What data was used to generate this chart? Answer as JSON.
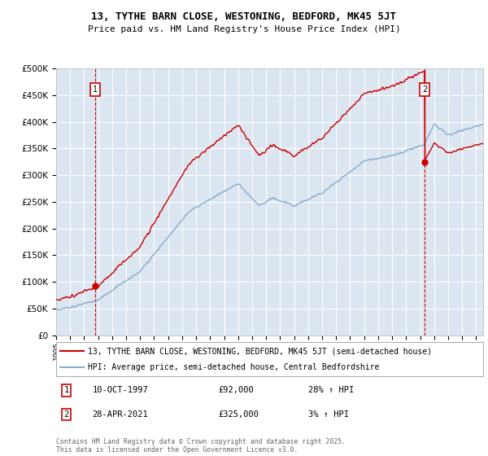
{
  "title1": "13, TYTHE BARN CLOSE, WESTONING, BEDFORD, MK45 5JT",
  "title2": "Price paid vs. HM Land Registry's House Price Index (HPI)",
  "legend_line1": "13, TYTHE BARN CLOSE, WESTONING, BEDFORD, MK45 5JT (semi-detached house)",
  "legend_line2": "HPI: Average price, semi-detached house, Central Bedfordshire",
  "annotation1_date": "10-OCT-1997",
  "annotation1_price": "£92,000",
  "annotation1_hpi": "28% ↑ HPI",
  "annotation2_date": "28-APR-2021",
  "annotation2_price": "£325,000",
  "annotation2_hpi": "3% ↑ HPI",
  "footer": "Contains HM Land Registry data © Crown copyright and database right 2025.\nThis data is licensed under the Open Government Licence v3.0.",
  "sale1_year": 1997.78,
  "sale1_price": 92000,
  "sale2_year": 2021.32,
  "sale2_price": 325000,
  "ylim_max": 500000,
  "ylim_min": 0,
  "property_color": "#cc0000",
  "hpi_color": "#88aacc",
  "plot_bg_color": "#dce6f1",
  "grid_color": "#ffffff",
  "vline_color": "#cc0000",
  "annotation_box_color": "#cc0000"
}
